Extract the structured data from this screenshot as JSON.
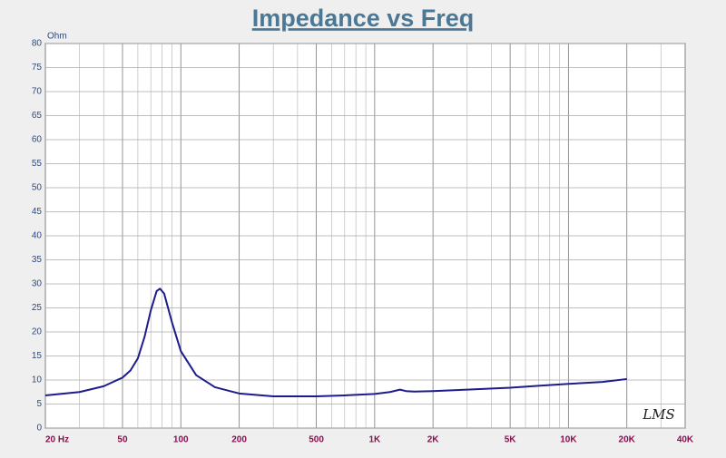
{
  "chart_data": {
    "type": "line",
    "title": "Impedance vs Freq",
    "y_label": "Ohm",
    "annotation": "LMS",
    "x": [
      20,
      30,
      40,
      50,
      55,
      60,
      65,
      70,
      75,
      78,
      82,
      90,
      100,
      120,
      150,
      200,
      300,
      500,
      700,
      1000,
      1200,
      1350,
      1450,
      1600,
      2000,
      3000,
      5000,
      7000,
      10000,
      15000,
      20000
    ],
    "values": [
      6.8,
      7.5,
      8.7,
      10.5,
      12,
      14.5,
      19,
      24.5,
      28.5,
      29,
      28,
      22,
      16,
      11,
      8.5,
      7.2,
      6.6,
      6.6,
      6.8,
      7.1,
      7.5,
      8.0,
      7.7,
      7.6,
      7.7,
      8.0,
      8.4,
      8.8,
      9.2,
      9.6,
      10.2
    ],
    "color": "#1c1c8c",
    "xscale": "log",
    "xlim": [
      20,
      40000
    ],
    "ylim": [
      0,
      80
    ],
    "xticks": [
      {
        "value": 20,
        "label": "20  Hz"
      },
      50,
      100,
      200,
      500,
      {
        "value": 1000,
        "label": "1K"
      },
      {
        "value": 2000,
        "label": "2K"
      },
      {
        "value": 5000,
        "label": "5K"
      },
      {
        "value": 10000,
        "label": "10K"
      },
      {
        "value": 20000,
        "label": "20K"
      },
      {
        "value": 40000,
        "label": "40K"
      }
    ],
    "xminorticks": [
      30,
      40,
      60,
      70,
      80,
      90,
      300,
      400,
      600,
      700,
      800,
      900,
      3000,
      4000,
      6000,
      7000,
      8000,
      9000,
      30000
    ],
    "yticks": [
      0,
      5,
      10,
      15,
      20,
      25,
      30,
      35,
      40,
      45,
      50,
      55,
      60,
      65,
      70,
      75,
      80
    ],
    "grid": true
  }
}
